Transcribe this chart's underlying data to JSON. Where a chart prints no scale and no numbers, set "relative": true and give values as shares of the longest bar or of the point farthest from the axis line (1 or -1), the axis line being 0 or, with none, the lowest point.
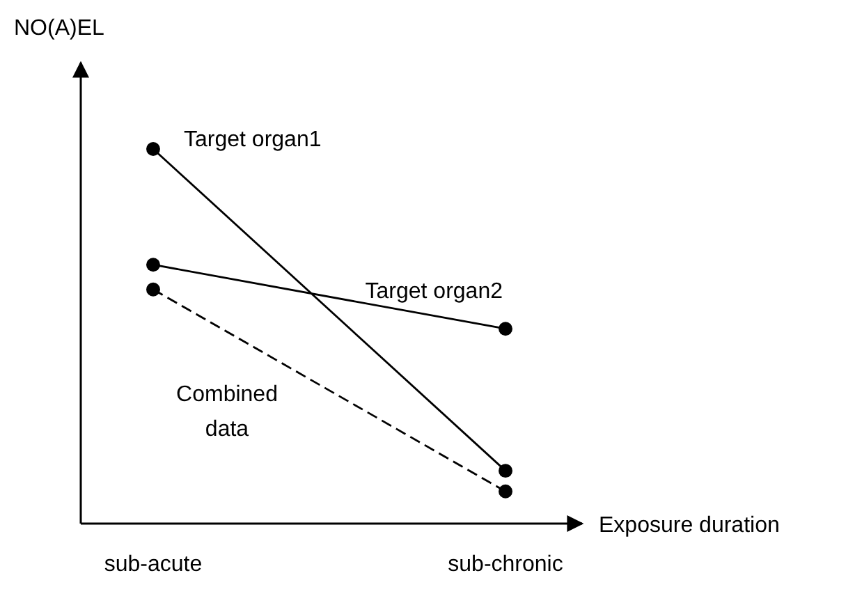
{
  "chart_data": {
    "type": "line",
    "relative": true,
    "xlabel": "Exposure duration",
    "ylabel": "NO(A)EL",
    "categories": [
      "sub-acute",
      "sub-chronic"
    ],
    "series": [
      {
        "name": "Target organ1",
        "color": "#000000",
        "values": [
          1,
          0.141
        ],
        "line_style": "solid"
      },
      {
        "name": "Target organ2",
        "color": "#010101",
        "values": [
          0.691,
          0.52
        ],
        "line_style": "solid"
      },
      {
        "name": "Combined data",
        "color": "#020202",
        "values": [
          0.625,
          0.086
        ],
        "line_style": "dashed"
      }
    ],
    "marker": "circle",
    "legend": false,
    "grid": false,
    "tick_labels": "x"
  }
}
